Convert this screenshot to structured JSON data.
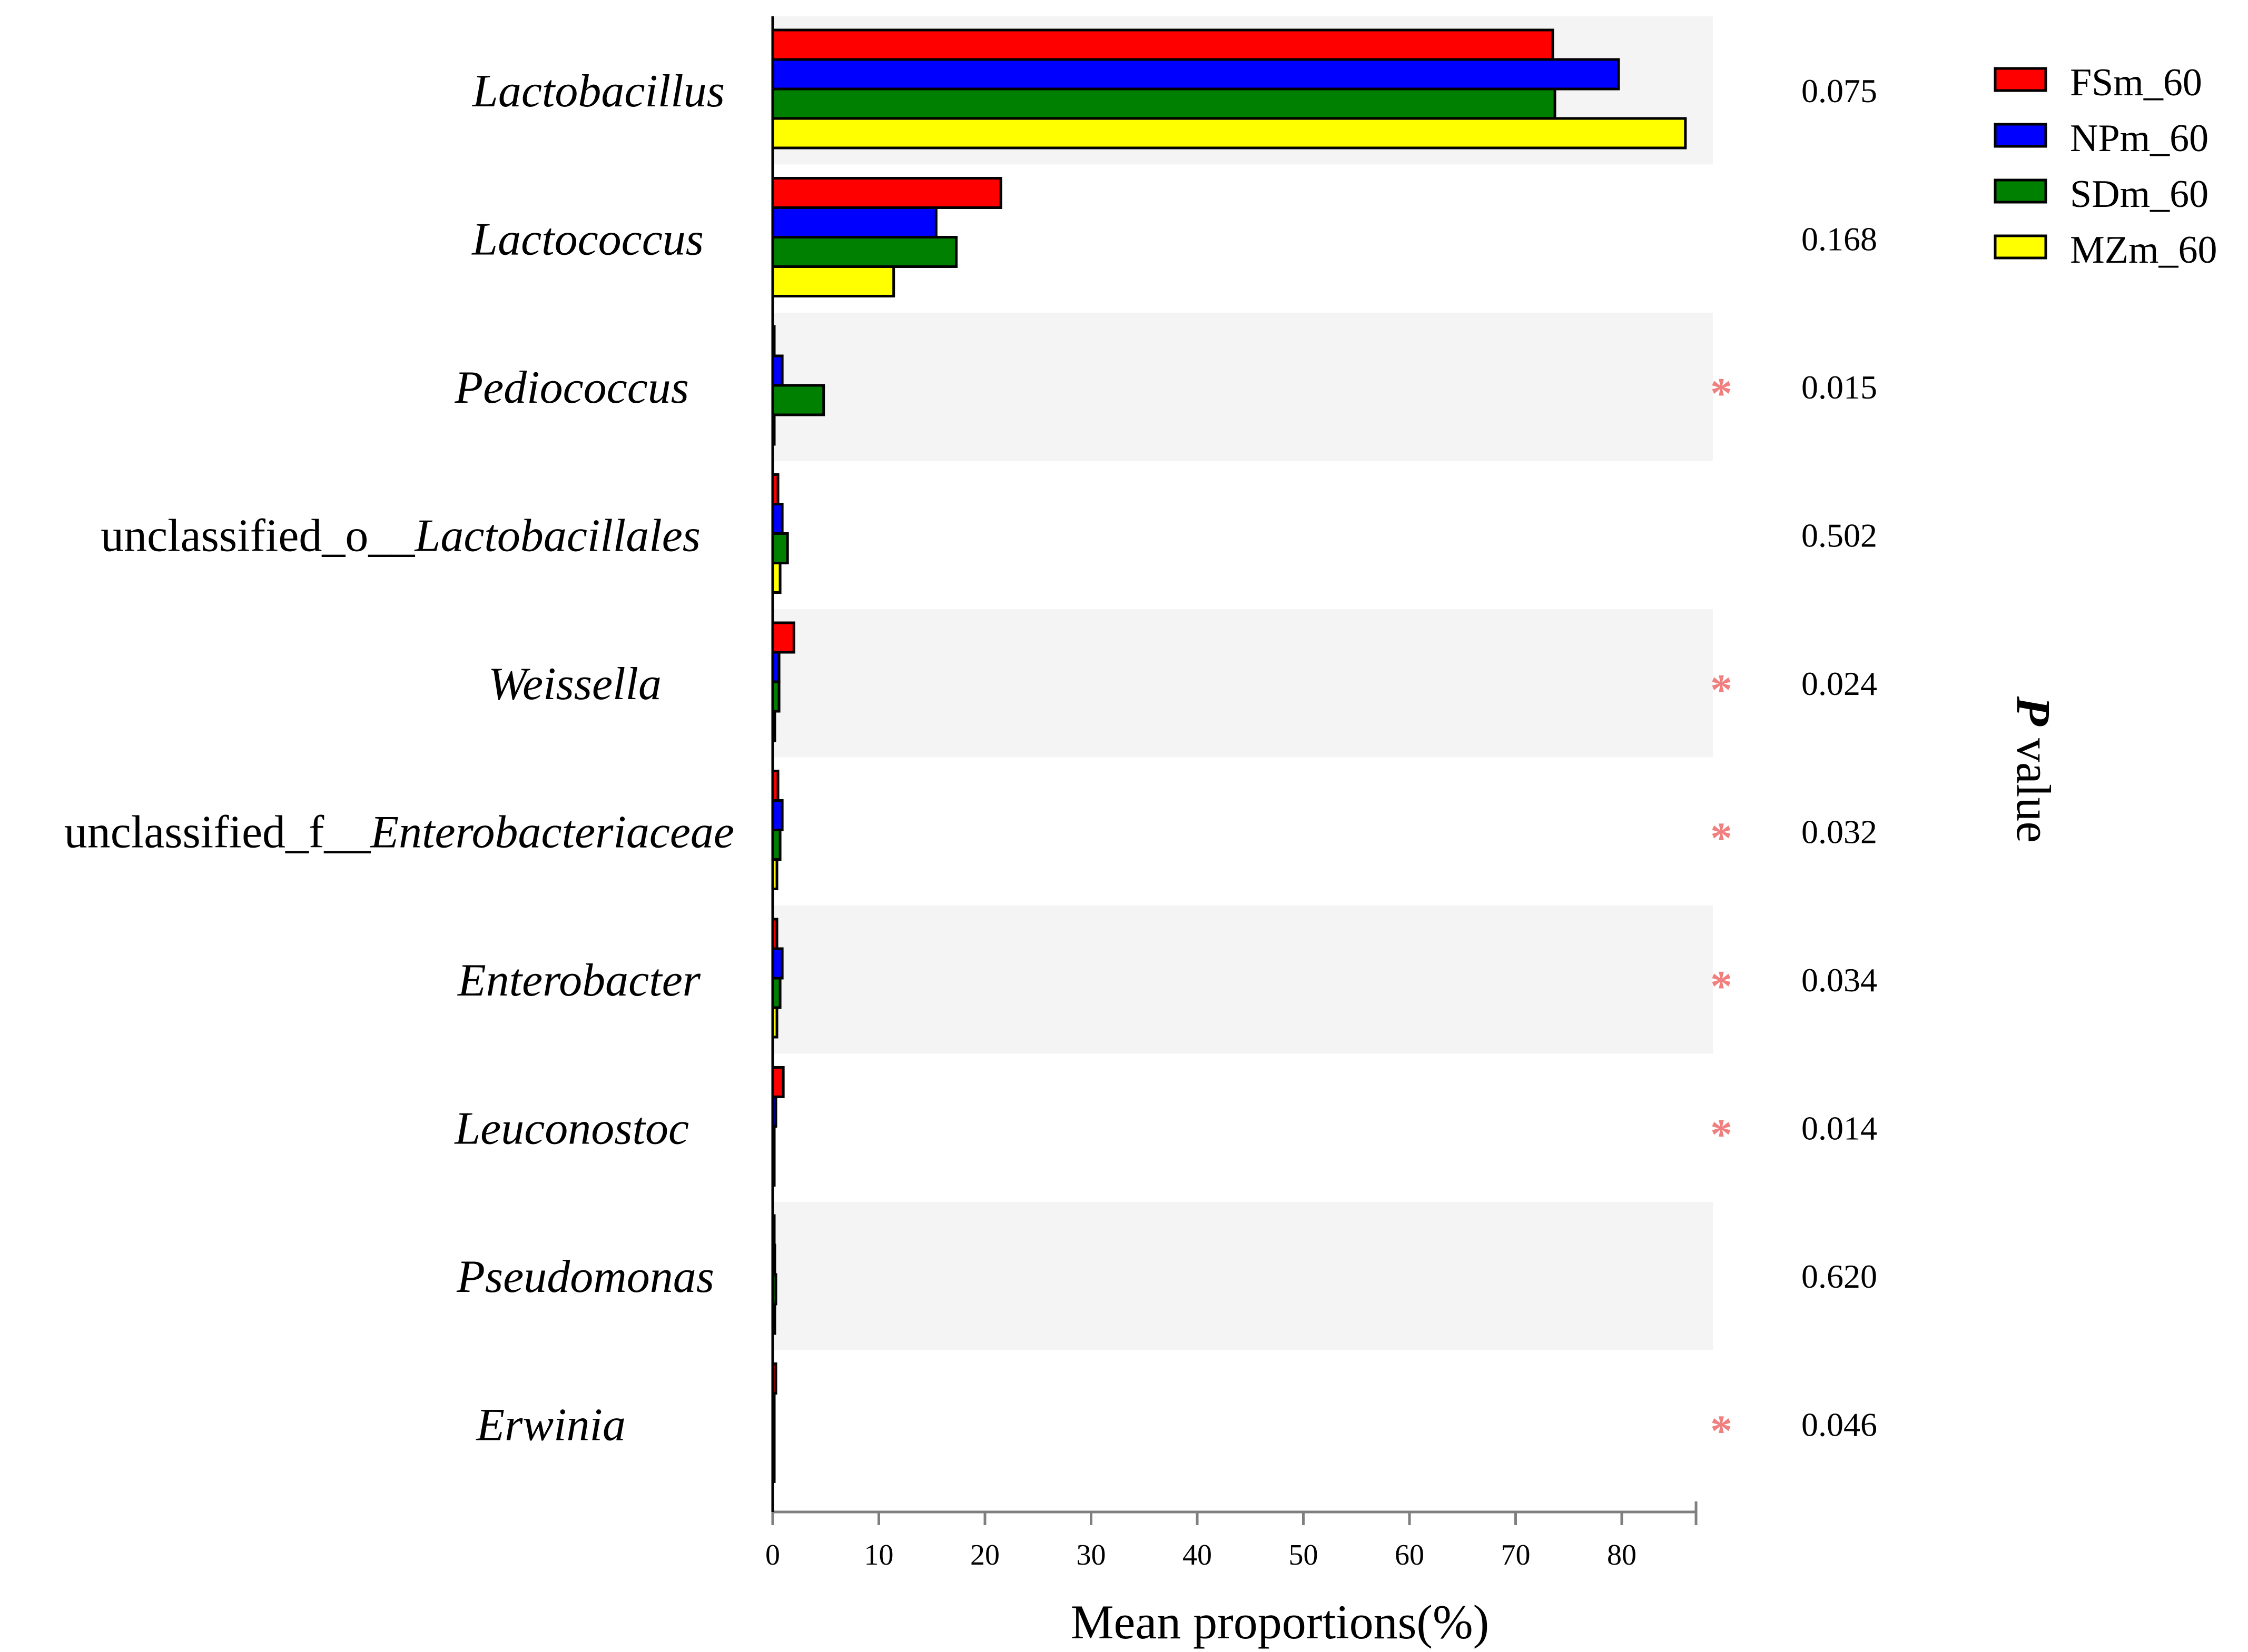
{
  "chart_data": {
    "type": "bar",
    "orientation": "horizontal",
    "xlabel": "Mean proportions(%)",
    "right_axis_label_italic": "P",
    "right_axis_label_rest": " value",
    "xlim": [
      0,
      87
    ],
    "x_ticks": [
      0,
      10,
      20,
      30,
      40,
      50,
      60,
      70,
      80
    ],
    "categories": [
      {
        "prefix": "",
        "italic": "Lactobacillus"
      },
      {
        "prefix": "",
        "italic": "Lactococcus"
      },
      {
        "prefix": "",
        "italic": "Pediococcus"
      },
      {
        "prefix": "unclassified_o__",
        "italic": "Lactobacillales"
      },
      {
        "prefix": "",
        "italic": "Weissella"
      },
      {
        "prefix": "unclassified_f__",
        "italic": "Enterobacteriaceae"
      },
      {
        "prefix": "",
        "italic": "Enterobacter"
      },
      {
        "prefix": "",
        "italic": "Leuconostoc"
      },
      {
        "prefix": "",
        "italic": "Pseudomonas"
      },
      {
        "prefix": "",
        "italic": "Erwinia"
      }
    ],
    "series": [
      {
        "name": "FSm_60",
        "color": "#ff0000",
        "values": [
          73.5,
          21.5,
          0.1,
          0.5,
          2.0,
          0.5,
          0.4,
          1.0,
          0.1,
          0.3
        ]
      },
      {
        "name": "NPm_60",
        "color": "#0000ff",
        "values": [
          79.7,
          15.4,
          0.9,
          0.9,
          0.6,
          0.9,
          0.9,
          0.3,
          0.2,
          0.1
        ]
      },
      {
        "name": "SDm_60",
        "color": "#008000",
        "values": [
          73.7,
          17.3,
          4.8,
          1.4,
          0.6,
          0.7,
          0.7,
          0.1,
          0.3,
          0.1
        ]
      },
      {
        "name": "MZm_60",
        "color": "#ffff00",
        "values": [
          86.0,
          11.4,
          0.1,
          0.7,
          0.2,
          0.4,
          0.4,
          0.1,
          0.2,
          0.1
        ]
      }
    ],
    "p_values": [
      "0.075",
      "0.168",
      "0.015",
      "0.502",
      "0.024",
      "0.032",
      "0.034",
      "0.014",
      "0.620",
      "0.046"
    ],
    "significance": [
      "",
      "",
      "*",
      "",
      "*",
      "*",
      "*",
      "*",
      "",
      "*"
    ],
    "significance_color": "#f08080",
    "row_band_color": "#f4f4f4",
    "legend_position": "top-right"
  }
}
